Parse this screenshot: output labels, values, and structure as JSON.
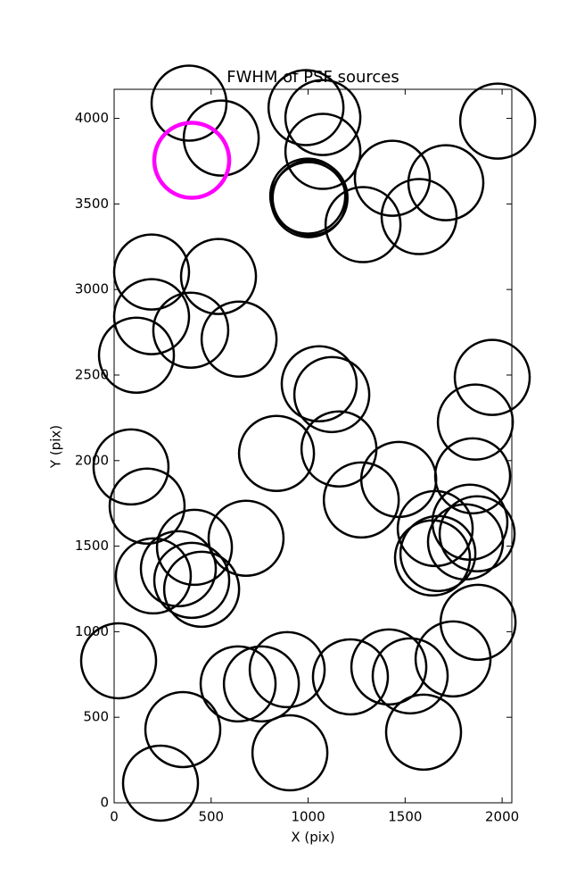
{
  "chart_data": {
    "type": "scatter",
    "title": "FWHM of PSF sources",
    "x_label": "X (pix)",
    "y_label": "Y (pix)",
    "xlim": [
      0,
      2050
    ],
    "ylim": [
      0,
      4170
    ],
    "xticks": [
      0,
      500,
      1000,
      1500,
      2000
    ],
    "yticks": [
      0,
      500,
      1000,
      1500,
      2000,
      2500,
      3000,
      3500,
      4000
    ],
    "series": [
      {
        "color": "#000000",
        "x": [
          386,
          552,
          989,
          1076,
          1076,
          998,
          1010,
          1003,
          1283,
          1434,
          1572,
          1710,
          1977,
          193,
          538,
          193,
          115,
          395,
          644,
          1057,
          1122,
          1949,
          1862,
          87,
          170,
          837,
          1159,
          1274,
          1467,
          1848,
          1834,
          1655,
          1871,
          1811,
          1669,
          1641,
          680,
          414,
          331,
          400,
          451,
          202,
          1876,
          23,
          1747,
          1416,
          1526,
          1218,
          892,
          759,
          639,
          354,
          1595,
          906,
          239
        ],
        "values": [
          4089,
          3885,
          4063,
          4005,
          3807,
          3546,
          3536,
          3525,
          3379,
          3650,
          3426,
          3624,
          3984,
          3102,
          3076,
          2841,
          2616,
          2762,
          2710,
          2449,
          2386,
          2486,
          2225,
          1963,
          1734,
          2042,
          2068,
          1770,
          1890,
          1911,
          1640,
          1603,
          1572,
          1525,
          1457,
          1431,
          1546,
          1493,
          1368,
          1300,
          1248,
          1326,
          1055,
          830,
          841,
          794,
          742,
          736,
          778,
          695,
          695,
          428,
          413,
          292,
          115
        ]
      },
      {
        "color": "#ff00ff",
        "x": [
          400
        ],
        "values": [
          3755
        ]
      }
    ]
  }
}
